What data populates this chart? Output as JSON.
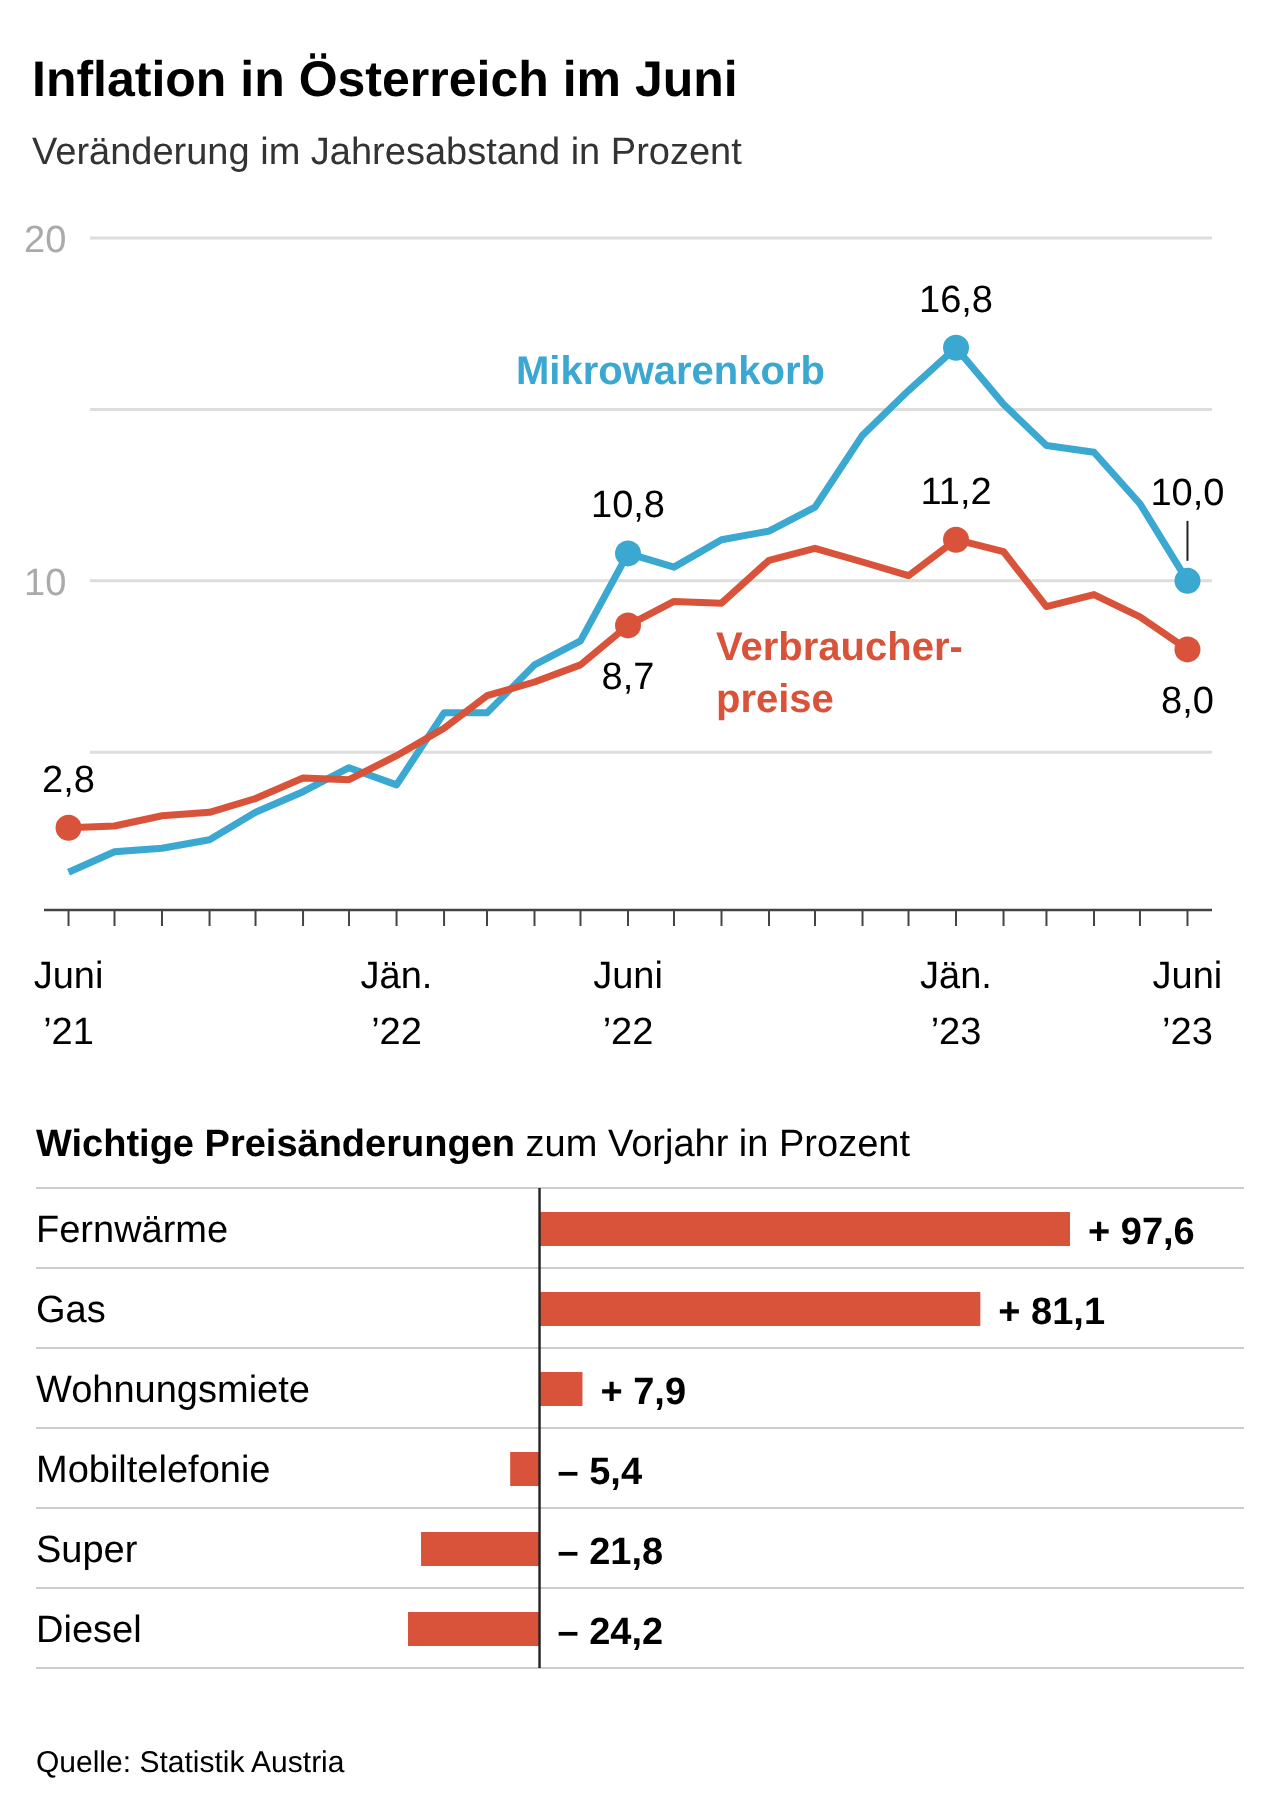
{
  "chart_data": [
    {
      "type": "line",
      "title": "Inflation in Österreich im Juni",
      "subtitle": "Veränderung im Jahresabstand in Prozent",
      "x": [
        "2021-06",
        "2021-07",
        "2021-08",
        "2021-09",
        "2021-10",
        "2021-11",
        "2021-12",
        "2022-01",
        "2022-02",
        "2022-03",
        "2022-04",
        "2022-05",
        "2022-06",
        "2022-07",
        "2022-08",
        "2022-09",
        "2022-10",
        "2022-11",
        "2022-12",
        "2023-01",
        "2023-02",
        "2023-03",
        "2023-04",
        "2023-05",
        "2023-06"
      ],
      "series": [
        {
          "name": "Mikrowarenkorb",
          "color": "#3aa8d0",
          "values": [
            1.5,
            2.1,
            2.2,
            2.45,
            3.25,
            3.85,
            4.55,
            4.05,
            6.15,
            6.15,
            7.55,
            8.25,
            10.8,
            10.4,
            11.2,
            11.45,
            12.15,
            14.25,
            15.55,
            16.8,
            15.15,
            13.95,
            13.75,
            12.25,
            10.0
          ],
          "value_labels": [
            null,
            null,
            null,
            null,
            null,
            null,
            null,
            null,
            null,
            null,
            null,
            null,
            "10,8",
            null,
            null,
            null,
            null,
            null,
            null,
            "16,8",
            null,
            null,
            null,
            null,
            "10,0"
          ]
        },
        {
          "name": "Verbraucher-\npreise",
          "color": "#d9533a",
          "values": [
            2.8,
            2.85,
            3.15,
            3.25,
            3.65,
            4.25,
            4.2,
            4.9,
            5.7,
            6.65,
            7.05,
            7.55,
            8.7,
            9.4,
            9.35,
            10.6,
            10.95,
            10.55,
            10.15,
            11.2,
            10.85,
            9.25,
            9.6,
            8.95,
            8.0
          ],
          "value_labels": [
            "2,8",
            null,
            null,
            null,
            null,
            null,
            null,
            null,
            null,
            null,
            null,
            null,
            "8,7",
            null,
            null,
            null,
            null,
            null,
            null,
            "11,2",
            null,
            null,
            null,
            null,
            "8,0"
          ]
        }
      ],
      "xlim": [
        "2021-05-16",
        "2023-06-17"
      ],
      "xticks": [
        {
          "value": "2021-06",
          "label": "Juni\n’21"
        },
        {
          "value": "2021-07",
          "label": null
        },
        {
          "value": "2021-08",
          "label": null
        },
        {
          "value": "2021-09",
          "label": null
        },
        {
          "value": "2021-10",
          "label": null
        },
        {
          "value": "2021-11",
          "label": null
        },
        {
          "value": "2021-12",
          "label": null
        },
        {
          "value": "2022-01",
          "label": "Jän.\n’22"
        },
        {
          "value": "2022-02",
          "label": null
        },
        {
          "value": "2022-03",
          "label": null
        },
        {
          "value": "2022-04",
          "label": null
        },
        {
          "value": "2022-05",
          "label": null
        },
        {
          "value": "2022-06",
          "label": "Juni\n’22"
        },
        {
          "value": "2022-07",
          "label": null
        },
        {
          "value": "2022-08",
          "label": null
        },
        {
          "value": "2022-09",
          "label": null
        },
        {
          "value": "2022-10",
          "label": null
        },
        {
          "value": "2022-11",
          "label": null
        },
        {
          "value": "2022-12",
          "label": null
        },
        {
          "value": "2023-01",
          "label": "Jän.\n’23"
        },
        {
          "value": "2023-02",
          "label": null
        },
        {
          "value": "2023-03",
          "label": null
        },
        {
          "value": "2023-04",
          "label": null
        },
        {
          "value": "2023-05",
          "label": null
        },
        {
          "value": "2023-06",
          "label": "Juni\n’23"
        }
      ],
      "ylim": [
        0.4,
        20
      ],
      "yticks": [
        {
          "value": 5,
          "label": null
        },
        10,
        {
          "value": 15,
          "label": null
        },
        20
      ],
      "grid": "y",
      "line_style": "solid"
    },
    {
      "type": "bar",
      "orientation": "horizontal",
      "title": "Wichtige Preisänderungen",
      "subtitle": "zum Vorjahr in Prozent",
      "categories": [
        "Fernwärme",
        "Gas",
        "Wohnungsmiete",
        "Mobiltelefonie",
        "Super",
        "Diesel"
      ],
      "values": [
        97.6,
        81.1,
        7.9,
        -5.4,
        -21.8,
        -24.2
      ],
      "color": "#d9533a",
      "value_labels": [
        "+ 97,6",
        "+ 81,1",
        "+ 7,9",
        "– 5,4",
        "– 21,8",
        "– 24,2"
      ],
      "annotations": [
        "Quelle: Statistik Austria"
      ]
    }
  ]
}
